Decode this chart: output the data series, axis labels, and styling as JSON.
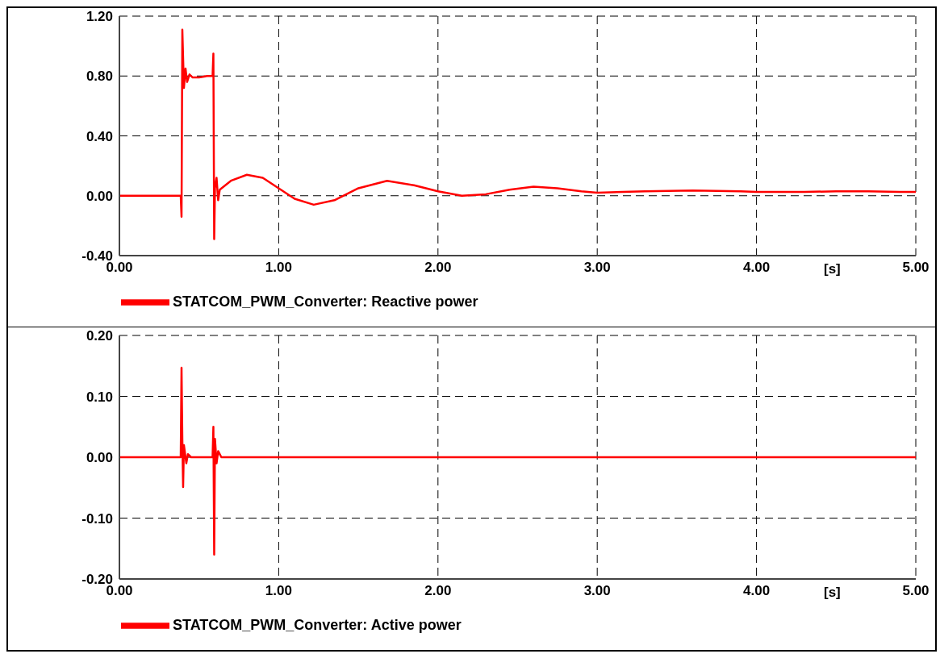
{
  "chart_data": [
    {
      "type": "line",
      "xlabel": "[s]",
      "x": [
        0,
        0.385,
        0.39,
        0.395,
        0.405,
        0.415,
        0.425,
        0.44,
        0.46,
        0.5,
        0.55,
        0.585,
        0.59,
        0.595,
        0.6,
        0.61,
        0.62,
        0.63,
        0.7,
        0.8,
        0.9,
        1.0,
        1.1,
        1.22,
        1.35,
        1.5,
        1.68,
        1.85,
        2.0,
        2.15,
        2.3,
        2.45,
        2.6,
        2.75,
        2.9,
        3.0,
        3.3,
        3.6,
        3.9,
        4.0,
        4.3,
        4.5,
        4.7,
        4.9,
        5.0
      ],
      "series": [
        {
          "name": "STATCOM_PWM_Converter: Reactive power",
          "color": "#ff0000",
          "values": [
            0,
            0,
            -0.14,
            1.11,
            0.72,
            0.85,
            0.76,
            0.81,
            0.79,
            0.79,
            0.8,
            0.8,
            0.95,
            -0.29,
            0.05,
            0.12,
            -0.03,
            0.04,
            0.1,
            0.14,
            0.12,
            0.05,
            -0.02,
            -0.06,
            -0.03,
            0.05,
            0.1,
            0.07,
            0.03,
            0,
            0.01,
            0.04,
            0.06,
            0.05,
            0.03,
            0.02,
            0.03,
            0.035,
            0.03,
            0.025,
            0.025,
            0.03,
            0.03,
            0.025,
            0.025
          ]
        }
      ],
      "xlim": [
        0,
        5
      ],
      "xticks": [
        {
          "value": 0,
          "label": "0.00"
        },
        {
          "value": 1,
          "label": "1.00"
        },
        {
          "value": 2,
          "label": "2.00"
        },
        {
          "value": 3,
          "label": "3.00"
        },
        {
          "value": 4,
          "label": "4.00"
        },
        {
          "value": 5,
          "label": "5.00"
        }
      ],
      "ylim": [
        -0.4,
        1.2
      ],
      "yticks": [
        {
          "value": -0.4,
          "label": "-0.40"
        },
        {
          "value": 0,
          "label": "0.00"
        },
        {
          "value": 0.4,
          "label": "0.40"
        },
        {
          "value": 0.8,
          "label": "0.80"
        },
        {
          "value": 1.2,
          "label": "1.20"
        }
      ],
      "grid": true,
      "legend": "bottom",
      "marker": "none",
      "line_style": "solid"
    },
    {
      "type": "line",
      "xlabel": "[s]",
      "x": [
        0,
        0.385,
        0.39,
        0.395,
        0.4,
        0.405,
        0.41,
        0.42,
        0.43,
        0.45,
        0.585,
        0.59,
        0.595,
        0.6,
        0.61,
        0.62,
        0.64,
        5.0
      ],
      "series": [
        {
          "name": "STATCOM_PWM_Converter: Active power",
          "color": "#ff0000",
          "values": [
            0,
            0,
            0.147,
            0.03,
            -0.049,
            0.02,
            0.01,
            -0.01,
            0.005,
            0,
            0,
            0.05,
            -0.16,
            0.03,
            -0.01,
            0.01,
            0,
            0
          ]
        }
      ],
      "xlim": [
        0,
        5
      ],
      "xticks": [
        {
          "value": 0,
          "label": "0.00"
        },
        {
          "value": 1,
          "label": "1.00"
        },
        {
          "value": 2,
          "label": "2.00"
        },
        {
          "value": 3,
          "label": "3.00"
        },
        {
          "value": 4,
          "label": "4.00"
        },
        {
          "value": 5,
          "label": "5.00"
        }
      ],
      "ylim": [
        -0.2,
        0.2
      ],
      "yticks": [
        {
          "value": -0.2,
          "label": "-0.20"
        },
        {
          "value": -0.1,
          "label": "-0.10"
        },
        {
          "value": 0,
          "label": "0.00"
        },
        {
          "value": 0.1,
          "label": "0.10"
        },
        {
          "value": 0.2,
          "label": "0.20"
        }
      ],
      "grid": true,
      "legend": "bottom",
      "marker": "none",
      "line_style": "solid"
    }
  ]
}
